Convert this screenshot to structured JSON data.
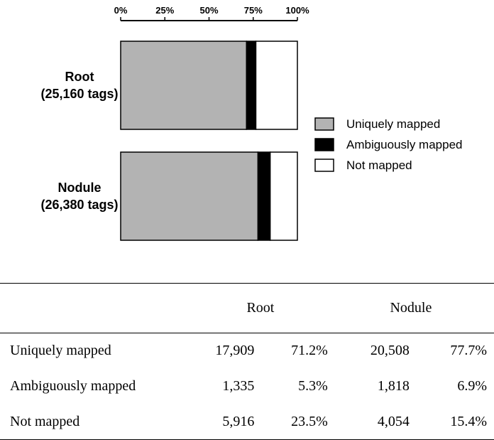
{
  "chart_data": {
    "type": "bar",
    "orientation": "horizontal",
    "stacked": true,
    "percent_stacked": true,
    "categories": [
      [
        "Root",
        "(25,160 tags)"
      ],
      [
        "Nodule",
        "(26,380 tags)"
      ]
    ],
    "series": [
      {
        "name": "Uniquely mapped",
        "values": [
          71.2,
          77.7
        ],
        "color": "#b3b3b3"
      },
      {
        "name": "Ambiguously mapped",
        "values": [
          5.3,
          6.9
        ],
        "color": "#000000"
      },
      {
        "name": "Not mapped",
        "values": [
          23.5,
          15.4
        ],
        "color": "#ffffff"
      }
    ],
    "x_ticks": [
      "0%",
      "25%",
      "50%",
      "75%",
      "100%"
    ],
    "xlim": [
      0,
      100
    ],
    "axis_position": "top",
    "legend_position": "right",
    "grid": false
  },
  "table": {
    "headers": [
      "",
      "Root",
      "Nodule"
    ],
    "rows": [
      {
        "label": "Uniquely mapped",
        "root_count": "17,909",
        "root_pct": "71.2%",
        "nodule_count": "20,508",
        "nodule_pct": "77.7%"
      },
      {
        "label": "Ambiguously mapped",
        "root_count": "1,335",
        "root_pct": "5.3%",
        "nodule_count": "1,818",
        "nodule_pct": "6.9%"
      },
      {
        "label": "Not mapped",
        "root_count": "5,916",
        "root_pct": "23.5%",
        "nodule_count": "4,054",
        "nodule_pct": "15.4%"
      }
    ]
  }
}
